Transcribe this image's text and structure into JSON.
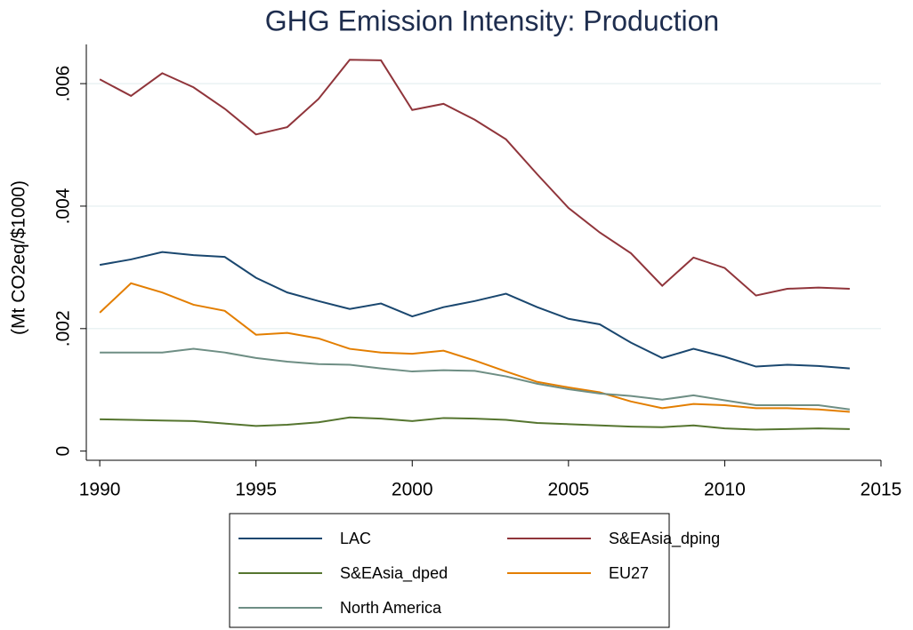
{
  "chart_data": {
    "type": "line",
    "title": "GHG Emission Intensity: Production",
    "y_label": "(Mt CO2eq/$1000)",
    "x": [
      1990,
      1991,
      1992,
      1993,
      1994,
      1995,
      1996,
      1997,
      1998,
      1999,
      2000,
      2001,
      2002,
      2003,
      2004,
      2005,
      2006,
      2007,
      2008,
      2009,
      2010,
      2011,
      2012,
      2013,
      2014
    ],
    "series": [
      {
        "name": "LAC",
        "color": "#1a476f",
        "values": [
          0.00304,
          0.00313,
          0.00325,
          0.0032,
          0.00317,
          0.00283,
          0.00259,
          0.00245,
          0.00232,
          0.00241,
          0.0022,
          0.00235,
          0.00245,
          0.00257,
          0.00235,
          0.00216,
          0.00207,
          0.00177,
          0.00152,
          0.00167,
          0.00154,
          0.00138,
          0.00141,
          0.00139,
          0.00135
        ]
      },
      {
        "name": "S&EAsia_dping",
        "color": "#90353b",
        "values": [
          0.00607,
          0.0058,
          0.00617,
          0.00594,
          0.00559,
          0.00517,
          0.00529,
          0.00575,
          0.00639,
          0.00638,
          0.00557,
          0.00567,
          0.00541,
          0.00509,
          0.00452,
          0.00397,
          0.00357,
          0.00323,
          0.0027,
          0.00316,
          0.00299,
          0.00254,
          0.00265,
          0.00267,
          0.00265
        ]
      },
      {
        "name": "S&EAsia_dped",
        "color": "#55752f",
        "values": [
          0.00052,
          0.00051,
          0.0005,
          0.00049,
          0.00045,
          0.00041,
          0.00043,
          0.00047,
          0.00055,
          0.00053,
          0.00049,
          0.00054,
          0.00053,
          0.00051,
          0.00046,
          0.00044,
          0.00042,
          0.0004,
          0.00039,
          0.00042,
          0.00037,
          0.00035,
          0.00036,
          0.00037,
          0.00036
        ]
      },
      {
        "name": "EU27",
        "color": "#e37e00",
        "values": [
          0.00226,
          0.00274,
          0.00259,
          0.00239,
          0.00229,
          0.0019,
          0.00193,
          0.00184,
          0.00167,
          0.00161,
          0.00159,
          0.00164,
          0.00148,
          0.0013,
          0.00113,
          0.00104,
          0.00096,
          0.00081,
          0.0007,
          0.00077,
          0.00075,
          0.0007,
          0.0007,
          0.00068,
          0.00064
        ]
      },
      {
        "name": "North America",
        "color": "#6e8e84",
        "values": [
          0.00161,
          0.00161,
          0.00161,
          0.00167,
          0.00161,
          0.00152,
          0.00146,
          0.00142,
          0.00141,
          0.00135,
          0.0013,
          0.00132,
          0.00131,
          0.00122,
          0.0011,
          0.00101,
          0.00094,
          0.0009,
          0.00084,
          0.00091,
          0.00083,
          0.00075,
          0.00075,
          0.00075,
          0.00068
        ]
      }
    ],
    "xlim": [
      1989.57,
      2015
    ],
    "xticks": [
      1990,
      1995,
      2000,
      2005,
      2010,
      2015
    ],
    "ylim": [
      -0.00015,
      0.00664
    ],
    "yticks": [
      0,
      {
        "value": 0.002,
        "label": ".002"
      },
      {
        "value": 0.004,
        "label": ".004"
      },
      {
        "value": 0.006,
        "label": ".006"
      }
    ],
    "grid": true,
    "legend": "bottom"
  }
}
